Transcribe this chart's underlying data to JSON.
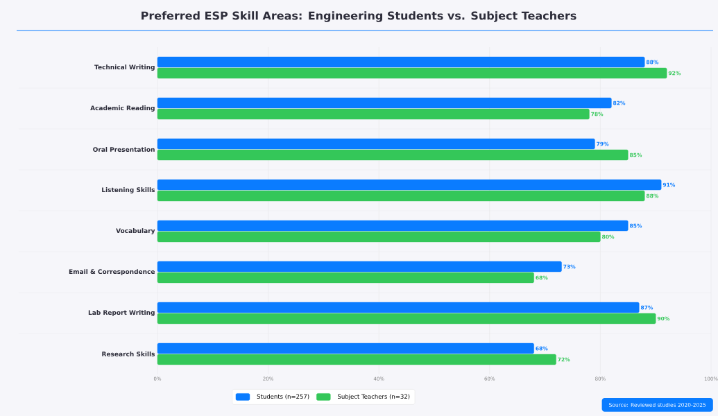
{
  "chart_data": {
    "type": "bar",
    "orientation": "horizontal",
    "title": "Preferred ESP Skill Areas: Engineering Students vs. Subject Teachers",
    "categories": [
      "Technical Writing",
      "Academic Reading",
      "Oral Presentation",
      "Listening Skills",
      "Vocabulary",
      "Email & Correspondence",
      "Lab Report Writing",
      "Research Skills"
    ],
    "series": [
      {
        "name": "Students (n=257)",
        "color": "#0a7cff",
        "values": [
          88,
          82,
          79,
          91,
          85,
          73,
          87,
          68
        ],
        "value_labels": [
          "88%",
          "82%",
          "79%",
          "91%",
          "85%",
          "73%",
          "87%",
          "68%"
        ]
      },
      {
        "name": "Subject Teachers (n=32)",
        "color": "#34c759",
        "values": [
          92,
          78,
          85,
          88,
          80,
          68,
          90,
          72
        ],
        "value_labels": [
          "92%",
          "78%",
          "85%",
          "88%",
          "80%",
          "68%",
          "90%",
          "72%"
        ]
      }
    ],
    "xlim": [
      0,
      100
    ],
    "xticks": [
      {
        "value": 0,
        "label": "0%"
      },
      {
        "value": 20,
        "label": "20%"
      },
      {
        "value": 40,
        "label": "40%"
      },
      {
        "value": 60,
        "label": "60%"
      },
      {
        "value": 80,
        "label": "80%"
      },
      {
        "value": 100,
        "label": "100%"
      }
    ],
    "grid": "x",
    "legend": "bottom",
    "annotations": [
      "Source: Reviewed studies 2020-2025"
    ]
  }
}
